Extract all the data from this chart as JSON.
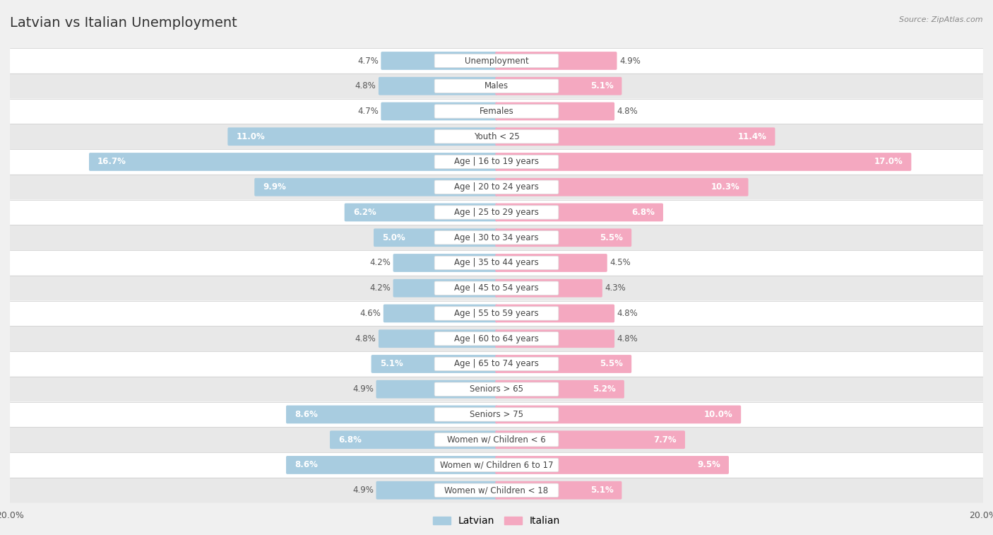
{
  "title": "Latvian vs Italian Unemployment",
  "source": "Source: ZipAtlas.com",
  "categories": [
    "Unemployment",
    "Males",
    "Females",
    "Youth < 25",
    "Age | 16 to 19 years",
    "Age | 20 to 24 years",
    "Age | 25 to 29 years",
    "Age | 30 to 34 years",
    "Age | 35 to 44 years",
    "Age | 45 to 54 years",
    "Age | 55 to 59 years",
    "Age | 60 to 64 years",
    "Age | 65 to 74 years",
    "Seniors > 65",
    "Seniors > 75",
    "Women w/ Children < 6",
    "Women w/ Children 6 to 17",
    "Women w/ Children < 18"
  ],
  "latvian": [
    4.7,
    4.8,
    4.7,
    11.0,
    16.7,
    9.9,
    6.2,
    5.0,
    4.2,
    4.2,
    4.6,
    4.8,
    5.1,
    4.9,
    8.6,
    6.8,
    8.6,
    4.9
  ],
  "italian": [
    4.9,
    5.1,
    4.8,
    11.4,
    17.0,
    10.3,
    6.8,
    5.5,
    4.5,
    4.3,
    4.8,
    4.8,
    5.5,
    5.2,
    10.0,
    7.7,
    9.5,
    5.1
  ],
  "latvian_color": "#a8cce0",
  "italian_color": "#f4a8c0",
  "bg_color": "#f0f0f0",
  "row_color_odd": "#ffffff",
  "row_color_even": "#e8e8e8",
  "label_color_inside": "#ffffff",
  "label_color_outside": "#555555",
  "xlim": 20.0,
  "bar_height": 0.62,
  "label_fontsize": 8.5,
  "category_fontsize": 8.5,
  "title_fontsize": 14,
  "value_fontsize": 8.5
}
